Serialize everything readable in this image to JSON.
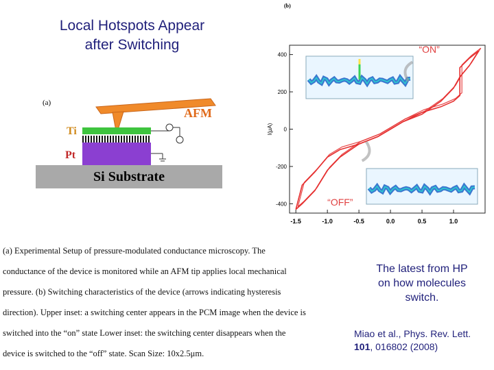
{
  "slide": {
    "title_line1": "Local Hotspots Appear",
    "title_line2": "after Switching",
    "note_line1": "The latest from HP",
    "note_line2": "on how molecules",
    "note_line3": "switch.",
    "citation_line1": "Miao et al., Phys. Rev. Lett.",
    "citation_vol": "101",
    "citation_rest": ", 016802 (2008)"
  },
  "figure_a": {
    "label": "(a)",
    "afm": "AFM",
    "ti": "Ti",
    "pt": "Pt",
    "substrate": "Si  Substrate"
  },
  "figure_b": {
    "label": "(b)",
    "ylabel": "I(μA)",
    "on_label": "“ON”",
    "off_label": "“OFF”",
    "x_ticks": [
      "-1.5",
      "-1.0",
      "-0.5",
      "0.0",
      "0.5",
      "1.0"
    ],
    "y_ticks": [
      "400",
      "200",
      "0",
      "-200",
      "-400"
    ]
  },
  "chart_data": {
    "type": "line",
    "title": "",
    "xlabel": "",
    "ylabel": "I(μA)",
    "xlim": [
      -1.6,
      1.5
    ],
    "ylim": [
      -450,
      450
    ],
    "x_ticks": [
      -1.5,
      -1.0,
      -0.5,
      0.0,
      0.5,
      1.0
    ],
    "y_ticks": [
      400,
      200,
      0,
      -200,
      -400
    ],
    "series_color": "#e53030",
    "series": [
      {
        "x": [
          -1.5,
          -1.4,
          -1.2,
          -1.0,
          -0.8,
          -0.5,
          -0.2,
          0.0,
          0.2,
          0.5,
          0.8,
          1.0,
          1.1,
          1.25,
          1.4
        ],
        "y": [
          -430,
          -300,
          -230,
          -150,
          -110,
          -80,
          -40,
          0,
          40,
          80,
          150,
          220,
          280,
          340,
          420
        ]
      },
      {
        "x": [
          1.4,
          1.25,
          1.1,
          1.1,
          1.0,
          0.8,
          0.5,
          0.2,
          0.0,
          -0.2,
          -0.5,
          -0.8,
          -1.0,
          -1.2,
          -1.4,
          -1.5
        ],
        "y": [
          420,
          380,
          330,
          180,
          150,
          120,
          90,
          40,
          0,
          -40,
          -80,
          -150,
          -220,
          -330,
          -400,
          -430
        ]
      }
    ],
    "grid": false
  },
  "caption": {
    "line1": "(a) Experimental Setup of pressure-modulated conductance microscopy. The",
    "line2": "conductance of the device is monitored while an AFM tip applies local mechanical",
    "line3": "pressure. (b)  Switching characteristics of the device (arrows indicating hysteresis",
    "line4": "direction). Upper inset: a switching center appears in the PCM image when the device is",
    "line5": "switched into the “on” state  Lower inset: the switching center disappears when the",
    "line6": "device is switched to the “off” state. Scan Size: 10x2.5μm."
  }
}
